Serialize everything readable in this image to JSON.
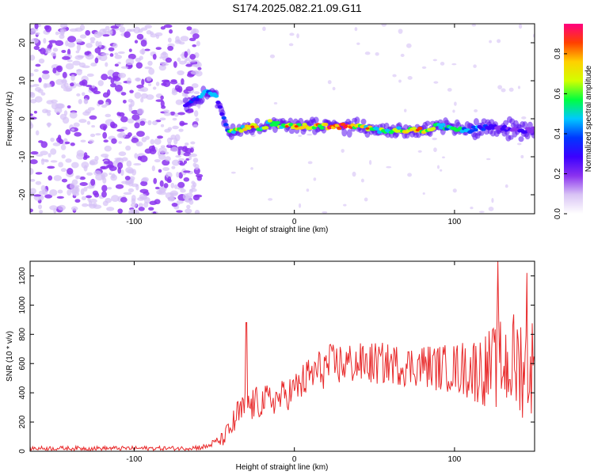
{
  "figure": {
    "title": "S174.2025.082.21.09.G11"
  },
  "chart_data": [
    {
      "type": "heatmap",
      "xlabel": "Height of straight line (km)",
      "ylabel": "Frequency (Hz)",
      "xlim": [
        -165,
        150
      ],
      "ylim": [
        -25,
        25
      ],
      "xticks": [
        -100,
        0,
        100
      ],
      "yticks": [
        -20,
        -10,
        0,
        10,
        20
      ],
      "colorbar": {
        "label": "Normalized spectral amplitude",
        "ticks": [
          0.0,
          0.2,
          0.4,
          0.6,
          0.8
        ],
        "range": [
          0,
          0.95
        ],
        "colors": [
          "#ffffff",
          "#d9c4f5",
          "#8b32ef",
          "#3b00ff",
          "#0037ff",
          "#00c8ff",
          "#00ff40",
          "#d2ff00",
          "#ffd000",
          "#ff4000",
          "#ff0080"
        ]
      },
      "ridge": {
        "x": [
          -68,
          -62,
          -55,
          -50,
          -46,
          -43,
          -40,
          -35,
          -30,
          -25,
          -20,
          -15,
          -10,
          -5,
          0,
          10,
          20,
          30,
          40,
          50,
          60,
          70,
          80,
          90,
          100,
          110,
          120,
          130,
          140,
          150
        ],
        "y": [
          4,
          5,
          7,
          6.5,
          3,
          -2,
          -3.5,
          -3,
          -2.5,
          -2,
          -2.5,
          -1,
          -1.5,
          -2,
          -2,
          -2,
          -2,
          -2,
          -2,
          -3,
          -3,
          -3,
          -3,
          -2,
          -2.5,
          -3,
          -2,
          -2.5,
          -3,
          -3
        ],
        "amplitude": [
          0.3,
          0.4,
          0.5,
          0.45,
          0.35,
          0.45,
          0.6,
          0.7,
          0.65,
          0.75,
          0.6,
          0.7,
          0.55,
          0.6,
          0.75,
          0.7,
          0.8,
          0.9,
          0.7,
          0.65,
          0.6,
          0.7,
          0.75,
          0.55,
          0.5,
          0.45,
          0.3,
          0.25,
          0.25,
          0.2
        ]
      },
      "noise_region_x": [
        -165,
        -65
      ]
    },
    {
      "type": "line",
      "xlabel": "Height of straight line (km)",
      "ylabel": "SNR (10 * v/v)",
      "xlim": [
        -165,
        150
      ],
      "ylim": [
        0,
        1300
      ],
      "xticks": [
        -100,
        0,
        100
      ],
      "yticks": [
        0,
        200,
        400,
        600,
        800,
        1000,
        1200
      ],
      "color": "#e8292a",
      "envelope": {
        "x": [
          -165,
          -70,
          -55,
          -50,
          -45,
          -40,
          -35,
          -30,
          -25,
          -20,
          -10,
          0,
          10,
          20,
          30,
          40,
          50,
          60,
          70,
          80,
          90,
          100,
          110,
          120,
          130,
          140,
          150
        ],
        "mean": [
          20,
          20,
          30,
          60,
          80,
          150,
          250,
          300,
          320,
          340,
          360,
          420,
          520,
          580,
          600,
          600,
          600,
          600,
          580,
          590,
          570,
          570,
          560,
          560,
          600,
          600,
          580
        ],
        "spread": [
          15,
          15,
          20,
          25,
          50,
          80,
          120,
          120,
          120,
          110,
          110,
          120,
          140,
          150,
          150,
          140,
          150,
          140,
          140,
          150,
          160,
          170,
          220,
          260,
          330,
          380,
          350
        ]
      },
      "peaks": [
        {
          "x": -30,
          "y": 880
        },
        {
          "x": 127,
          "y": 1300
        },
        {
          "x": 145,
          "y": 1220
        }
      ]
    }
  ]
}
